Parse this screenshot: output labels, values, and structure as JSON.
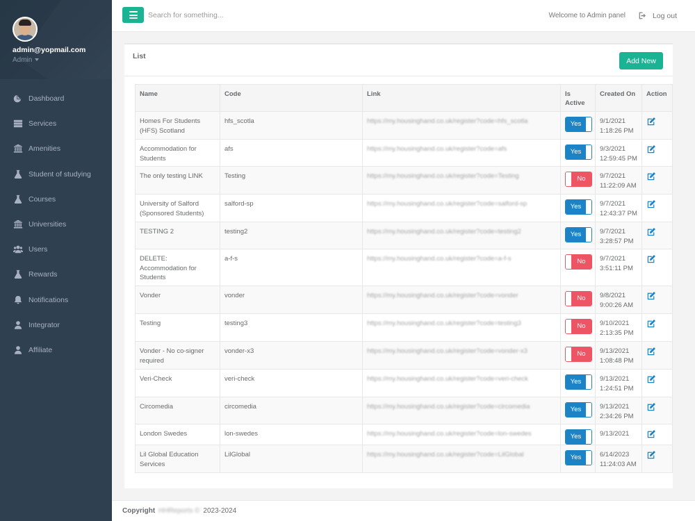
{
  "sidebar": {
    "email": "admin@yopmail.com",
    "role": "Admin",
    "items": [
      {
        "label": "Dashboard",
        "icon": "pie-chart-icon"
      },
      {
        "label": "Services",
        "icon": "server-icon"
      },
      {
        "label": "Amenities",
        "icon": "institution-icon"
      },
      {
        "label": "Student of studying",
        "icon": "flask-icon"
      },
      {
        "label": "Courses",
        "icon": "flask-icon"
      },
      {
        "label": "Universities",
        "icon": "institution-icon"
      },
      {
        "label": "Users",
        "icon": "users-icon"
      },
      {
        "label": "Rewards",
        "icon": "flask-icon"
      },
      {
        "label": "Notifications",
        "icon": "bell-icon"
      },
      {
        "label": "Integrator",
        "icon": "user-icon"
      },
      {
        "label": "Affiliate",
        "icon": "user-icon"
      }
    ]
  },
  "topbar": {
    "search_placeholder": "Search for something...",
    "welcome": "Welcome to Admin panel",
    "logout": "Log out"
  },
  "panel": {
    "title": "List",
    "add_label": "Add New"
  },
  "table": {
    "headers": {
      "name": "Name",
      "code": "Code",
      "link": "Link",
      "active": "Is Active",
      "created": "Created On",
      "action": "Action"
    },
    "rows": [
      {
        "name": "Homes For Students (HFS) Scotland",
        "code": "hfs_scotla",
        "link": "https://my.housinghand.co.uk/register?code=hfs_scotla",
        "active": "Yes",
        "date": "9/1/2021",
        "time": "1:18:26 PM"
      },
      {
        "name": "Accommodation for Students",
        "code": "afs",
        "link": "https://my.housinghand.co.uk/register?code=afs",
        "active": "Yes",
        "date": "9/3/2021",
        "time": "12:59:45 PM"
      },
      {
        "name": "The only testing LINK",
        "code": "Testing",
        "link": "https://my.housinghand.co.uk/register?code=Testing",
        "active": "No",
        "date": "9/7/2021",
        "time": "11:22:09 AM"
      },
      {
        "name": "University of Salford (Sponsored Students)",
        "code": "salford-sp",
        "link": "https://my.housinghand.co.uk/register?code=salford-sp",
        "active": "Yes",
        "date": "9/7/2021",
        "time": "12:43:37 PM"
      },
      {
        "name": "TESTING 2",
        "code": "testing2",
        "link": "https://my.housinghand.co.uk/register?code=testing2",
        "active": "Yes",
        "date": "9/7/2021",
        "time": "3:28:57 PM"
      },
      {
        "name": "DELETE: Accommodation for Students",
        "code": "a-f-s",
        "link": "https://my.housinghand.co.uk/register?code=a-f-s",
        "active": "No",
        "date": "9/7/2021",
        "time": "3:51:11 PM"
      },
      {
        "name": "Vonder",
        "code": "vonder",
        "link": "https://my.housinghand.co.uk/register?code=vonder",
        "active": "No",
        "date": "9/8/2021",
        "time": "9:00:26 AM"
      },
      {
        "name": "Testing",
        "code": "testing3",
        "link": "https://my.housinghand.co.uk/register?code=testing3",
        "active": "No",
        "date": "9/10/2021",
        "time": "2:13:35 PM"
      },
      {
        "name": "Vonder - No co-signer required",
        "code": "vonder-x3",
        "link": "https://my.housinghand.co.uk/register?code=vonder-x3",
        "active": "No",
        "date": "9/13/2021",
        "time": "1:08:48 PM"
      },
      {
        "name": "Veri-Check",
        "code": "veri-check",
        "link": "https://my.housinghand.co.uk/register?code=veri-check",
        "active": "Yes",
        "date": "9/13/2021",
        "time": "1:24:51 PM"
      },
      {
        "name": "Circomedia",
        "code": "circomedia",
        "link": "https://my.housinghand.co.uk/register?code=circomedia",
        "active": "Yes",
        "date": "9/13/2021",
        "time": "2:34:26 PM"
      },
      {
        "name": "London Swedes",
        "code": "lon-swedes",
        "link": "https://my.housinghand.co.uk/register?code=lon-swedes",
        "active": "Yes",
        "date": "9/13/2021",
        "time": ""
      },
      {
        "name": "Lil Global Education Services",
        "code": "LilGlobal",
        "link": "https://my.housinghand.co.uk/register?code=LilGlobal",
        "active": "Yes",
        "date": "6/14/2023",
        "time": "11:24:03 AM"
      }
    ]
  },
  "footer": {
    "label": "Copyright",
    "owner": "HHReports ©",
    "years": "2023-2024"
  },
  "colors": {
    "accent": "#1ab394",
    "sidebar": "#2f4050",
    "yes": "#1c84c6",
    "no": "#ed5565"
  }
}
